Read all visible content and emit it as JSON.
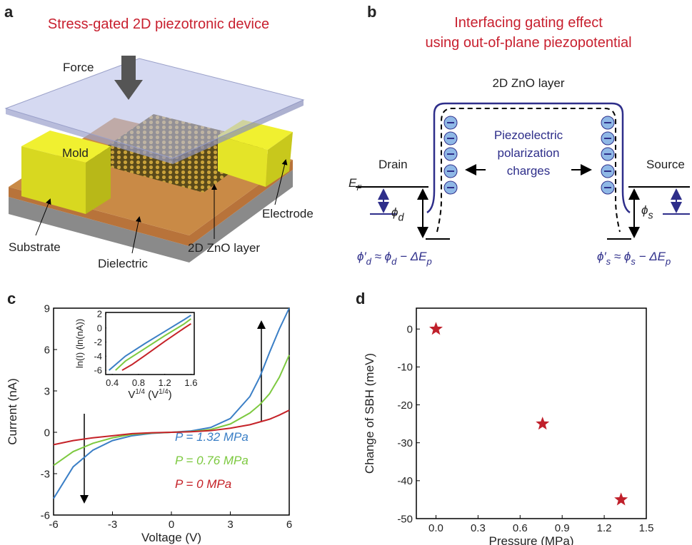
{
  "panel_a": {
    "letter": "a",
    "title": "Stress-gated 2D piezotronic device",
    "force": "Force",
    "mold": "Mold",
    "electrode": "Electrode",
    "substrate": "Substrate",
    "dielectric": "Dielectric",
    "zno": "2D ZnO layer"
  },
  "panel_b": {
    "letter": "b",
    "title_lines": [
      "Interfacing gating effect",
      "using out-of-plane piezopotential"
    ],
    "layer": "2D ZnO layer",
    "center_lines": [
      "Piezoelectric",
      "polarization",
      "charges"
    ],
    "drain": "Drain",
    "source": "Source",
    "fermi": [
      "E",
      "F"
    ],
    "phi_d": [
      "ϕ",
      "d"
    ],
    "phi_s": [
      "ϕ",
      "s"
    ],
    "drain_formula": [
      "ϕ′",
      "d",
      " ≈ ϕ",
      "d",
      " − ΔE",
      "p"
    ],
    "source_formula": [
      "ϕ′",
      "s",
      " ≈ ϕ",
      "s",
      " − ΔE",
      "p"
    ]
  },
  "chart_data": [
    {
      "type": "line",
      "panel": "c",
      "xlabel": "Voltage (V)",
      "ylabel": "Current (nA)",
      "x": [
        -6,
        -5,
        -4,
        -3,
        -2,
        -1,
        0,
        1,
        2,
        3,
        4,
        4.5,
        5,
        5.5,
        6
      ],
      "xlim": [
        -6,
        6
      ],
      "xticks": [
        -6,
        -3,
        0,
        3,
        6
      ],
      "ylim": [
        -6,
        9
      ],
      "yticks": [
        -6,
        -3,
        0,
        3,
        6,
        9
      ],
      "series": [
        {
          "name": "P = 1.32 MPa",
          "color": "#3b7fc6",
          "values": [
            -4.8,
            -2.5,
            -1.3,
            -0.6,
            -0.25,
            -0.08,
            0,
            0.1,
            0.35,
            1.0,
            2.6,
            4.0,
            5.8,
            7.5,
            9
          ]
        },
        {
          "name": "P = 0.76 MPa",
          "color": "#7dc940",
          "values": [
            -2.4,
            -1.4,
            -0.8,
            -0.4,
            -0.15,
            -0.05,
            0,
            0.05,
            0.2,
            0.6,
            1.4,
            2.0,
            2.8,
            4.0,
            5.6
          ]
        },
        {
          "name": "P = 0 MPa",
          "color": "#c52228",
          "values": [
            -0.9,
            -0.6,
            -0.4,
            -0.25,
            -0.1,
            -0.03,
            0,
            0.04,
            0.12,
            0.3,
            0.55,
            0.75,
            0.95,
            1.25,
            1.6
          ]
        }
      ]
    },
    {
      "type": "line",
      "xlabel": [
        "V",
        "1/4",
        " (V",
        "1/4",
        ")"
      ],
      "ylabel": "ln(I) (ln(nA))",
      "xlim": [
        0.3,
        1.65
      ],
      "xticks": [
        0.4,
        0.8,
        1.2,
        1.6
      ],
      "ylim": [
        -6.6,
        2.2
      ],
      "yticks": [
        -6,
        -4,
        -2,
        0,
        2
      ],
      "series": [
        {
          "color": "#3b7fc6",
          "x": [
            0.35,
            0.6,
            0.9,
            1.2,
            1.5,
            1.6
          ],
          "values": [
            -6,
            -4.0,
            -2.2,
            -0.5,
            1.2,
            1.8
          ]
        },
        {
          "color": "#7dc940",
          "x": [
            0.45,
            0.6,
            0.9,
            1.2,
            1.5,
            1.6
          ],
          "values": [
            -6,
            -4.7,
            -2.9,
            -1.1,
            0.6,
            1.3
          ]
        },
        {
          "color": "#c52228",
          "x": [
            0.55,
            0.7,
            0.9,
            1.2,
            1.5,
            1.6
          ],
          "values": [
            -6,
            -5.2,
            -3.9,
            -1.9,
            0,
            0.6
          ]
        }
      ]
    },
    {
      "type": "scatter",
      "panel": "d",
      "xlabel": "Pressure (MPa)",
      "ylabel": "Change of SBH (meV)",
      "marker": "star",
      "color": "#c0202b",
      "x": [
        0,
        0.76,
        1.32
      ],
      "values": [
        0,
        -25,
        -45
      ],
      "xlim": [
        -0.14,
        1.5
      ],
      "xticks": [
        {
          "value": 0,
          "label": "0.0"
        },
        0.3,
        0.6,
        0.9,
        1.2,
        1.5
      ],
      "ylim": [
        -50,
        5.5
      ],
      "yticks": [
        0,
        -10,
        -20,
        -30,
        -40,
        -50
      ]
    }
  ]
}
